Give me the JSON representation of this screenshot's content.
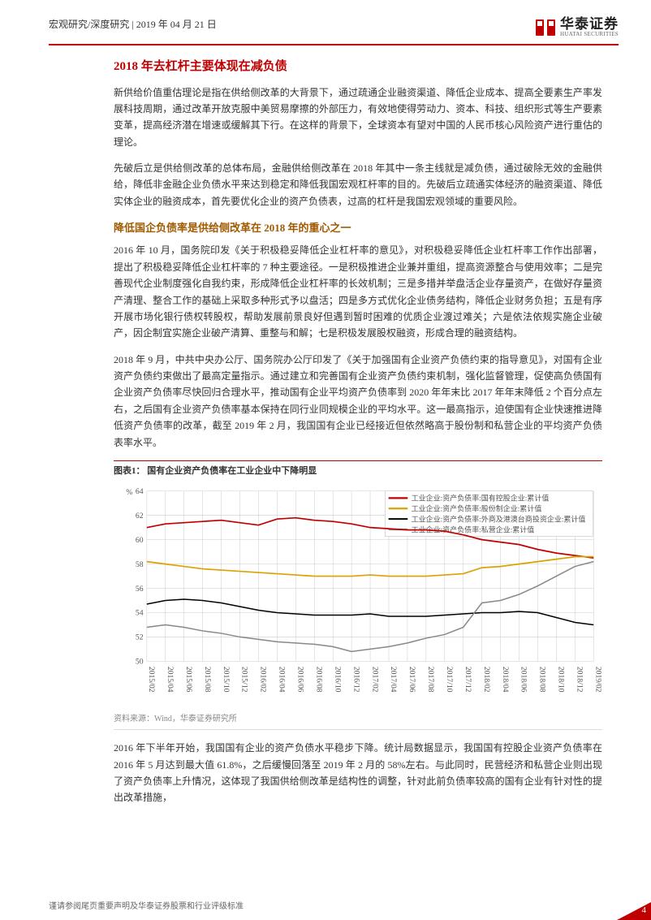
{
  "header": {
    "breadcrumb": "宏观研究/深度研究 | 2019 年 04 月 21 日",
    "company_cn": "华泰证券",
    "company_en": "HUATAI SECURITIES"
  },
  "h1": "2018 年去杠杆主要体现在减负债",
  "p1": "新供给价值重估理论是指在供给侧改革的大背景下，通过疏通企业融资渠道、降低企业成本、提高全要素生产率发展科技周期，通过改革开放克服中美贸易摩擦的外部压力，有效地使得劳动力、资本、科技、组织形式等生产要素变革，提高经济潜在增速或缓解其下行。在这样的背景下，全球资本有望对中国的人民币核心风险资产进行重估的理论。",
  "p2": "先破后立是供给侧改革的总体布局，金融供给侧改革在 2018 年其中一条主线就是减负债，通过破除无效的金融供给，降低非金融企业负债水平来达到稳定和降低我国宏观杠杆率的目的。先破后立疏通实体经济的融资渠道、降低实体企业的融资成本，首先要优化企业的资产负债表，过高的杠杆是我国宏观领域的重要风险。",
  "h2": "降低国企负债率是供给侧改革在 2018 年的重心之一",
  "p3": "2016 年 10 月，国务院印发《关于积极稳妥降低企业杠杆率的意见》，对积极稳妥降低企业杠杆率工作作出部署，提出了积极稳妥降低企业杠杆率的 7 种主要途径。一是积极推进企业兼并重组，提高资源整合与使用效率；二是完善现代企业制度强化自我约束，形成降低企业杠杆率的长效机制；三是多措并举盘活企业存量资产，在做好存量资产清理、整合工作的基础上采取多种形式予以盘活；四是多方式优化企业债务结构，降低企业财务负担；五是有序开展市场化银行债权转股权，帮助发展前景良好但遇到暂时困难的优质企业渡过难关；六是依法依规实施企业破产，因企制宜实施企业破产清算、重整与和解；七是积极发展股权融资，形成合理的融资结构。",
  "p4": "2018 年 9 月，中共中央办公厅、国务院办公厅印发了《关于加强国有企业资产负债约束的指导意见》，对国有企业资产负债约束做出了最高定量指示。通过建立和完善国有企业资产负债约束机制，强化监督管理，促使高负债国有企业资产负债率尽快回归合理水平，推动国有企业平均资产负债率到 2020 年年末比 2017 年年末降低 2 个百分点左右，之后国有企业资产负债率基本保持在同行业同规模企业的平均水平。这一最高指示，迫使国有企业快速推进降低资产负债率的改革，截至 2019 年 2 月，我国国有企业已经接近但依然略高于股份制和私营企业的平均资产负债表率水平。",
  "chart": {
    "title": "图表1：  国有企业资产负债率在工业企业中下降明显",
    "y_label": "%",
    "y_min": 50,
    "y_max": 64,
    "y_step": 2,
    "x_labels": [
      "2015/02",
      "2015/04",
      "2015/06",
      "2015/08",
      "2015/10",
      "2015/12",
      "2016/02",
      "2016/04",
      "2016/06",
      "2016/08",
      "2016/10",
      "2016/12",
      "2017/02",
      "2017/04",
      "2017/06",
      "2017/08",
      "2017/10",
      "2017/12",
      "2018/02",
      "2018/04",
      "2018/06",
      "2018/08",
      "2018/10",
      "2018/12",
      "2019/02"
    ],
    "series": [
      {
        "name": "工业企业:资产负债率:国有控股企业:累计值",
        "color": "#c00000",
        "width": 1.6,
        "values": [
          61.0,
          61.3,
          61.4,
          61.5,
          61.6,
          61.4,
          61.2,
          61.7,
          61.8,
          61.6,
          61.5,
          61.3,
          61.0,
          60.9,
          60.8,
          60.8,
          60.7,
          60.4,
          60.0,
          59.8,
          59.6,
          59.2,
          58.9,
          58.7,
          58.5
        ]
      },
      {
        "name": "工业企业:资产负债率:股份制企业:累计值",
        "color": "#d9a300",
        "width": 1.6,
        "values": [
          58.2,
          58.0,
          57.8,
          57.6,
          57.5,
          57.4,
          57.3,
          57.2,
          57.1,
          57.0,
          57.0,
          57.0,
          57.1,
          57.0,
          57.0,
          57.0,
          57.1,
          57.2,
          57.7,
          57.8,
          58.0,
          58.2,
          58.4,
          58.6,
          58.6
        ]
      },
      {
        "name": "工业企业:资产负债率:外商及港澳台商投资企业:累计值",
        "color": "#000000",
        "width": 1.4,
        "values": [
          54.7,
          55.0,
          55.1,
          55.0,
          54.8,
          54.5,
          54.2,
          54.0,
          53.9,
          53.8,
          53.8,
          53.8,
          53.9,
          53.7,
          53.7,
          53.7,
          53.8,
          53.9,
          54.0,
          54.0,
          54.1,
          54.0,
          53.6,
          53.2,
          53.0
        ]
      },
      {
        "name": "工业企业:资产负债率:私营企业:累计值",
        "color": "#888888",
        "width": 1.4,
        "values": [
          52.8,
          53.0,
          52.8,
          52.5,
          52.3,
          52.0,
          51.8,
          51.6,
          51.5,
          51.4,
          51.2,
          50.8,
          51.0,
          51.2,
          51.5,
          51.9,
          52.2,
          52.8,
          54.8,
          55.0,
          55.5,
          56.2,
          57.0,
          57.8,
          58.2
        ]
      }
    ],
    "source": "资料来源：Wind，华泰证券研究所"
  },
  "p5": "2016 年下半年开始，我国国有企业的资产负债水平稳步下降。统计局数据显示，我国国有控股企业资产负债率在 2016 年 5 月达到最大值 61.8%，之后缓慢回落至 2019 年 2 月的 58%左右。与此同时，民营经济和私营企业则出现了资产负债率上升情况，这体现了我国供给侧改革是结构性的调整，针对此前负债率较高的国有企业有针对性的提出改革措施，",
  "footer": {
    "disclaimer": "谨请参阅尾页重要声明及华泰证券股票和行业评级标准",
    "page": "4"
  }
}
